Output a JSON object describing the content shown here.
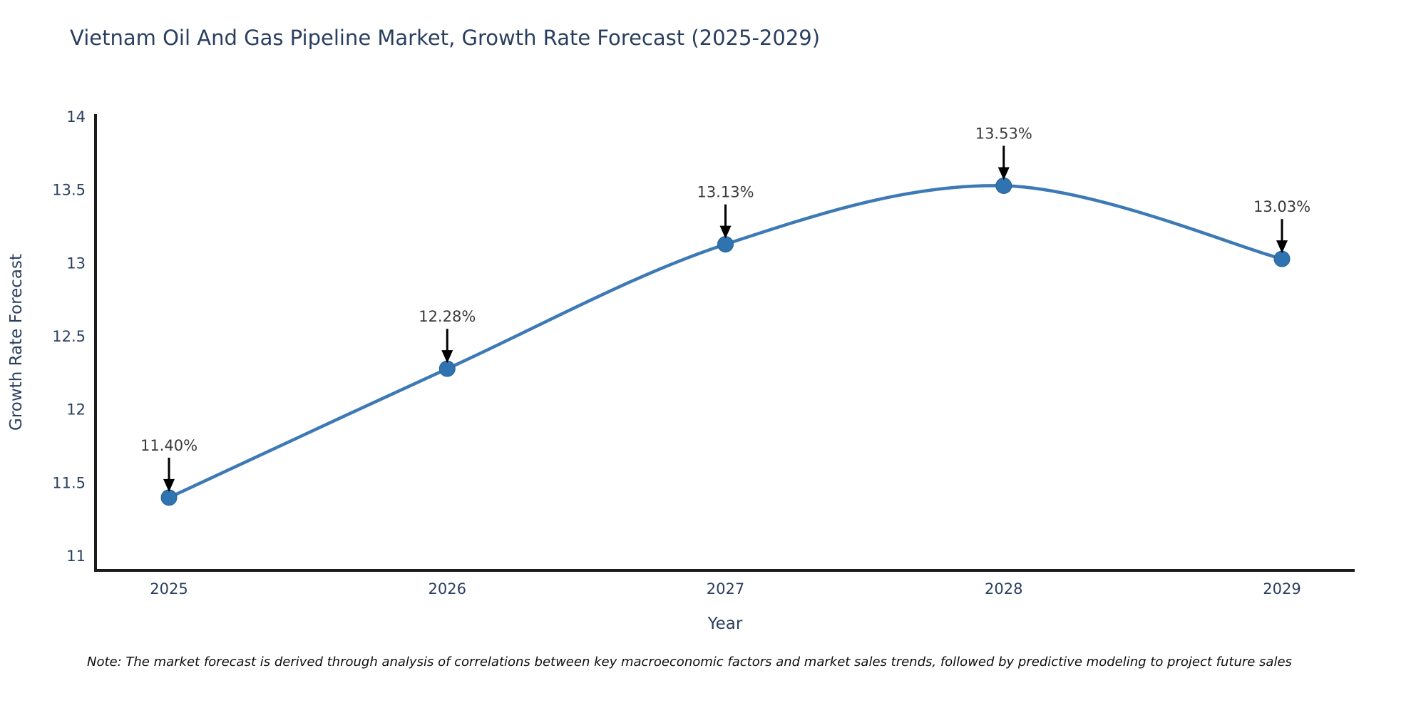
{
  "page": {
    "title": "Vietnam Oil And Gas Pipeline Market, Growth Rate Forecast (2025-2029)",
    "note": "Note: The market forecast is derived through analysis of correlations between key macroeconomic factors and market sales trends, followed by predictive modeling to project future sales"
  },
  "chart_data": {
    "type": "line",
    "title": "Vietnam Oil And Gas Pipeline Market, Growth Rate Forecast (2025-2029)",
    "xlabel": "Year",
    "ylabel": "Growth Rate Forecast",
    "categories": [
      "2025",
      "2026",
      "2027",
      "2028",
      "2029"
    ],
    "series": [
      {
        "name": "Growth Rate Forecast",
        "values": [
          11.4,
          12.28,
          13.13,
          13.53,
          13.03
        ],
        "point_labels": [
          "11.40%",
          "12.28%",
          "13.13%",
          "13.53%",
          "13.03%"
        ]
      }
    ],
    "ylim": [
      11,
      14
    ],
    "yticks": [
      11,
      11.5,
      12,
      12.5,
      13,
      13.5,
      14
    ],
    "ytick_labels": [
      "11",
      "11.5",
      "12",
      "12.5",
      "13",
      "13.5",
      "14"
    ],
    "grid": false,
    "legend_position": "none",
    "line_style": "smooth-spline",
    "annotation_style": "value-label-with-down-arrow",
    "colors": {
      "line": "#3d7ab5",
      "marker_fill": "#2f74b0",
      "marker_edge": "#27618f",
      "axis_line": "#1c1c1c",
      "axis_text": "#2a3f5f",
      "annotation_text": "#3a3a3a",
      "annotation_arrow": "#000000",
      "background": "#ffffff"
    }
  }
}
